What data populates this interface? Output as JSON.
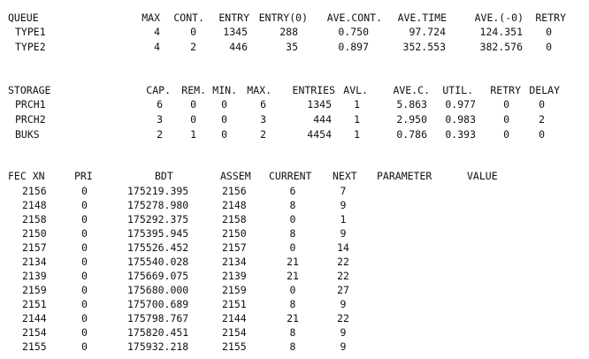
{
  "queue": {
    "headers": [
      "QUEUE",
      "MAX",
      "CONT.",
      "ENTRY",
      "ENTRY(0)",
      "AVE.CONT.",
      "AVE.TIME",
      "AVE.(-0)",
      "RETRY"
    ],
    "rows": [
      [
        "TYPE1",
        "4",
        "0",
        "1345",
        "288",
        "0.750",
        "97.724",
        "124.351",
        "0"
      ],
      [
        "TYPE2",
        "4",
        "2",
        "446",
        "35",
        "0.897",
        "352.553",
        "382.576",
        "0"
      ]
    ]
  },
  "storage": {
    "headers": [
      "STORAGE",
      "CAP.",
      "REM.",
      "MIN.",
      "MAX.",
      "ENTRIES",
      "AVL.",
      "AVE.C.",
      "UTIL.",
      "RETRY",
      "DELAY"
    ],
    "rows": [
      [
        "PRCH1",
        "6",
        "0",
        "0",
        "6",
        "1345",
        "1",
        "5.863",
        "0.977",
        "0",
        "0"
      ],
      [
        "PRCH2",
        "3",
        "0",
        "0",
        "3",
        "444",
        "1",
        "2.950",
        "0.983",
        "0",
        "2"
      ],
      [
        "BUKS",
        "2",
        "1",
        "0",
        "2",
        "4454",
        "1",
        "0.786",
        "0.393",
        "0",
        "0"
      ]
    ]
  },
  "fec": {
    "headers": [
      "FEC XN",
      "PRI",
      "BDT",
      "ASSEM",
      "CURRENT",
      "NEXT",
      "PARAMETER",
      "VALUE"
    ],
    "rows": [
      [
        "2156",
        "0",
        "175219.395",
        "2156",
        "6",
        "7"
      ],
      [
        "2148",
        "0",
        "175278.980",
        "2148",
        "8",
        "9"
      ],
      [
        "2158",
        "0",
        "175292.375",
        "2158",
        "0",
        "1"
      ],
      [
        "2150",
        "0",
        "175395.945",
        "2150",
        "8",
        "9"
      ],
      [
        "2157",
        "0",
        "175526.452",
        "2157",
        "0",
        "14"
      ],
      [
        "2134",
        "0",
        "175540.028",
        "2134",
        "21",
        "22"
      ],
      [
        "2139",
        "0",
        "175669.075",
        "2139",
        "21",
        "22"
      ],
      [
        "2159",
        "0",
        "175680.000",
        "2159",
        "0",
        "27"
      ],
      [
        "2151",
        "0",
        "175700.689",
        "2151",
        "8",
        "9"
      ],
      [
        "2144",
        "0",
        "175798.767",
        "2144",
        "21",
        "22"
      ],
      [
        "2154",
        "0",
        "175820.451",
        "2154",
        "8",
        "9"
      ],
      [
        "2155",
        "0",
        "175932.218",
        "2155",
        "8",
        "9"
      ]
    ]
  }
}
